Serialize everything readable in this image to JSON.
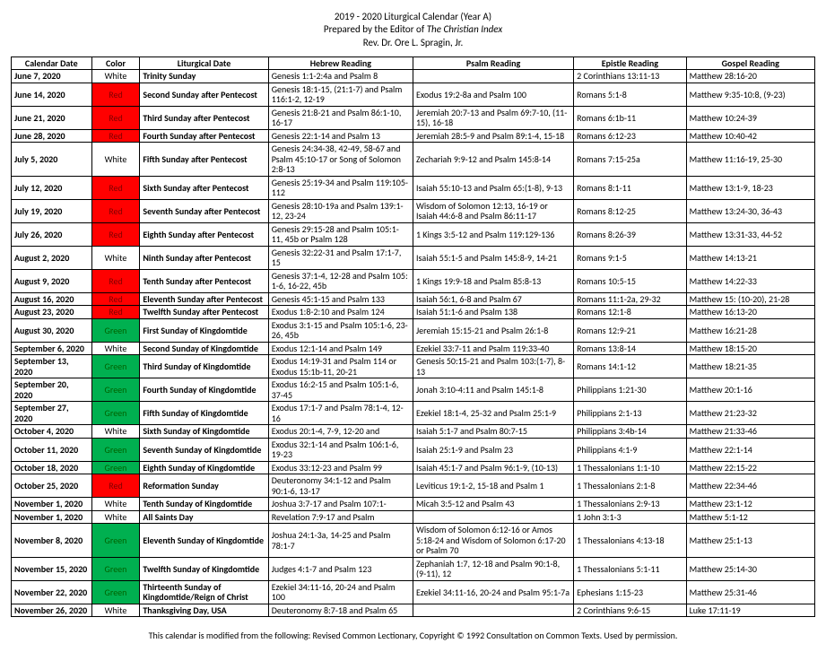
{
  "header": {
    "line1": "2019 - 2020 Liturgical Calendar (Year A)",
    "line2_pre": "Prepared by the Editor of ",
    "line2_em": "The Christian Index",
    "line3": "Rev. Dr. Ore L. Spragin, Jr."
  },
  "columns": [
    "Calendar Date",
    "Color",
    "Liturgical Date",
    "Hebrew Reading",
    "Psalm Reading",
    "Epistle Reading",
    "Gospel Reading"
  ],
  "color_map": {
    "White": {
      "bg": "#ffffff",
      "fg": "#000000"
    },
    "Red": {
      "bg": "#ff0000",
      "fg": "#800000"
    },
    "Green": {
      "bg": "#00b050",
      "fg": "#006400"
    }
  },
  "rows": [
    {
      "date": "June 7, 2020",
      "color": "White",
      "liturgical": "Trinity Sunday",
      "hebrew": "Genesis 1:1-2:4a and Psalm 8",
      "psalm": "",
      "epistle": "2 Corinthians 13:11-13",
      "gospel": "Matthew 28:16-20"
    },
    {
      "date": "June 14, 2020",
      "color": "Red",
      "liturgical": "Second Sunday after Pentecost",
      "hebrew": "Genesis 18:1-15, (21:1-7) and Psalm 116:1-2, 12-19",
      "psalm": "Exodus 19:2-8a and Psalm 100",
      "epistle": "Romans 5:1-8",
      "gospel": "Matthew 9:35-10:8, (9-23)"
    },
    {
      "date": "June 21, 2020",
      "color": "Red",
      "liturgical": "Third Sunday after Pentecost",
      "hebrew": "Genesis 21:8-21 and Psalm 86:1-10, 16-17",
      "psalm": "Jeremiah 20:7-13 and Psalm 69:7-10, (11-15), 16-18",
      "epistle": "Romans 6:1b-11",
      "gospel": "Matthew 10:24-39"
    },
    {
      "date": "June 28, 2020",
      "color": "Red",
      "liturgical": "Fourth Sunday after Pentecost",
      "hebrew": "Genesis 22:1-14 and Psalm 13",
      "psalm": "Jeremiah 28:5-9 and Psalm 89:1-4, 15-18",
      "epistle": "Romans 6:12-23",
      "gospel": "Matthew 10:40-42"
    },
    {
      "date": "July 5, 2020",
      "color": "White",
      "liturgical": "Fifth Sunday after Pentecost",
      "hebrew": "Genesis 24:34-38, 42-49, 58-67 and Psalm 45:10-17 or Song of Solomon 2:8-13",
      "psalm": "Zechariah 9:9-12 and Psalm 145:8-14",
      "epistle": "Romans 7:15-25a",
      "gospel": "Matthew 11:16-19, 25-30"
    },
    {
      "date": "July 12, 2020",
      "color": "Red",
      "liturgical": "Sixth Sunday after Pentecost",
      "hebrew": "Genesis 25:19-34 and Psalm 119:105-112",
      "psalm": "Isaiah 55:10-13 and Psalm 65:(1-8), 9-13",
      "epistle": "Romans 8:1-11",
      "gospel": "Matthew 13:1-9, 18-23"
    },
    {
      "date": "July 19, 2020",
      "color": "Red",
      "liturgical": "Seventh Sunday after Pentecost",
      "hebrew": "Genesis 28:10-19a and Psalm 139:1-12, 23-24",
      "psalm": "Wisdom of Solomon 12:13, 16-19 or Isaiah 44:6-8 and Psalm 86:11-17",
      "epistle": "Romans 8:12-25",
      "gospel": "Matthew 13:24-30, 36-43"
    },
    {
      "date": "July 26, 2020",
      "color": "Red",
      "liturgical": "Eighth Sunday after Pentecost",
      "hebrew": "Genesis 29:15-28 and Psalm 105:1-11, 45b or Psalm 128",
      "psalm": "1 Kings 3:5-12 and Psalm 119:129-136",
      "epistle": "Romans 8:26-39",
      "gospel": "Matthew 13:31-33, 44-52"
    },
    {
      "date": "August 2, 2020",
      "color": "White",
      "liturgical": "Ninth Sunday after Pentecost",
      "hebrew": "Genesis 32:22-31 and Psalm 17:1-7, 15",
      "psalm": "Isaiah 55:1-5 and Psalm 145:8-9, 14-21",
      "epistle": "Romans 9:1-5",
      "gospel": "Matthew 14:13-21"
    },
    {
      "date": "August 9, 2020",
      "color": "Red",
      "liturgical": "Tenth Sunday after Pentecost",
      "hebrew": "Genesis 37:1-4, 12-28 and Psalm 105: 1-6, 16-22, 45b",
      "psalm": "1 Kings 19:9-18 and Psalm 85:8-13",
      "epistle": "Romans 10:5-15",
      "gospel": "Matthew 14:22-33"
    },
    {
      "date": "August 16, 2020",
      "color": "Red",
      "liturgical": "Eleventh Sunday after Pentecost",
      "hebrew": "Genesis 45:1-15 and Psalm 133",
      "psalm": "Isaiah 56:1, 6-8 and Psalm 67",
      "epistle": "Romans 11:1-2a, 29-32",
      "gospel": "Matthew 15: (10-20), 21-28"
    },
    {
      "date": "August 23, 2020",
      "color": "Red",
      "liturgical": "Twelfth Sunday after Pentecost",
      "hebrew": "Exodus 1:8-2:10 and Psalm 124",
      "psalm": "Isaiah 51:1-6 and Psalm 138",
      "epistle": "Romans 12:1-8",
      "gospel": "Matthew 16:13-20"
    },
    {
      "date": "August 30, 2020",
      "color": "Green",
      "liturgical": "First Sunday of Kingdomtide",
      "hebrew": "Exodus 3:1-15 and Psalm 105:1-6, 23-26, 45b",
      "psalm": "Jeremiah 15:15-21 and Psalm 26:1-8",
      "epistle": "Romans 12:9-21",
      "gospel": "Matthew 16:21-28"
    },
    {
      "date": "September 6, 2020",
      "color": "White",
      "liturgical": "Second Sunday of Kingdomtide",
      "hebrew": "Exodus 12:1-14 and Psalm 149",
      "psalm": "Ezekiel 33:7-11 and Psalm 119:33-40",
      "epistle": "Romans 13:8-14",
      "gospel": "Matthew 18:15-20"
    },
    {
      "date": "September 13, 2020",
      "color": "Green",
      "liturgical": "Third Sunday of Kingdomtide",
      "hebrew": "Exodus 14:19-31 and Psalm 114 or Exodus 15:1b-11, 20-21",
      "psalm": "Genesis 50:15-21 and Psalm 103:(1-7), 8-13",
      "epistle": "Romans 14:1-12",
      "gospel": "Matthew 18:21-35"
    },
    {
      "date": "September 20, 2020",
      "color": "Green",
      "liturgical": "Fourth Sunday of Kingdomtide",
      "hebrew": "Exodus 16:2-15 and Psalm 105:1-6, 37-45",
      "psalm": "Jonah 3:10-4:11 and Psalm 145:1-8",
      "epistle": "Philippians 1:21-30",
      "gospel": "Matthew 20:1-16"
    },
    {
      "date": "September 27, 2020",
      "color": "Green",
      "liturgical": "Fifth Sunday of Kingdomtide",
      "hebrew": "Exodus 17:1-7 and Psalm 78:1-4, 12-16",
      "psalm": "Ezekiel 18:1-4, 25-32 and Psalm 25:1-9",
      "epistle": "Philippians 2:1-13",
      "gospel": "Matthew 21:23-32"
    },
    {
      "date": "October 4, 2020",
      "color": "White",
      "liturgical": "Sixth Sunday of Kingdomtide",
      "hebrew": "Exodus 20:1-4, 7-9, 12-20 and",
      "psalm": "Isaiah 5:1-7 and Psalm 80:7-15",
      "epistle": "Philippians 3:4b-14",
      "gospel": "Matthew 21:33-46"
    },
    {
      "date": "October 11, 2020",
      "color": "Green",
      "liturgical": "Seventh Sunday of Kingdomtide",
      "hebrew": "Exodus 32:1-14 and Psalm 106:1-6, 19-23",
      "psalm": "Isaiah 25:1-9 and Psalm 23",
      "epistle": "Philippians 4:1-9",
      "gospel": "Matthew 22:1-14"
    },
    {
      "date": "October 18, 2020",
      "color": "Green",
      "liturgical": "Eighth Sunday of Kingdomtide",
      "hebrew": "Exodus 33:12-23 and Psalm 99",
      "psalm": "Isaiah 45:1-7 and Psalm 96:1-9, (10-13)",
      "epistle": "1 Thessalonians 1:1-10",
      "gospel": "Matthew 22:15-22"
    },
    {
      "date": "October 25, 2020",
      "color": "Red",
      "liturgical": "Reformation Sunday",
      "hebrew": "Deuteronomy 34:1-12 and Psalm 90:1-6, 13-17",
      "psalm": "Leviticus 19:1-2, 15-18 and Psalm 1",
      "epistle": "1 Thessalonians 2:1-8",
      "gospel": "Matthew 22:34-46"
    },
    {
      "date": "November 1, 2020",
      "color": "White",
      "liturgical": "Tenth Sunday of Kingdomtide",
      "hebrew": "Joshua 3:7-17 and Psalm 107:1-",
      "psalm": "Micah 3:5-12 and Psalm 43",
      "epistle": "1 Thessalonians 2:9-13",
      "gospel": "Matthew 23:1-12"
    },
    {
      "date": "November 1, 2020",
      "color": "White",
      "liturgical": "All Saints Day",
      "hebrew": "Revelation 7:9-17 and Psalm",
      "psalm": "",
      "epistle": "1 John 3:1-3",
      "gospel": "Matthew 5:1-12"
    },
    {
      "date": "November 8, 2020",
      "color": "Green",
      "liturgical": "Eleventh Sunday of Kingdomtide",
      "hebrew": "Joshua 24:1-3a, 14-25 and Psalm 78:1-7",
      "psalm": "Wisdom of Solomon 6:12-16 or Amos 5:18-24 and Wisdom of Solomon 6:17-20 or Psalm 70",
      "epistle": "1 Thessalonians 4:13-18",
      "gospel": "Matthew 25:1-13"
    },
    {
      "date": "November 15, 2020",
      "color": "Green",
      "liturgical": "Twelfth Sunday of Kingdomtide",
      "hebrew": "Judges 4:1-7 and Psalm 123",
      "psalm": "Zephaniah 1:7, 12-18 and Psalm 90:1-8, (9-11), 12",
      "epistle": "1 Thessalonians 5:1-11",
      "gospel": "Matthew 25:14-30"
    },
    {
      "date": "November 22, 2020",
      "color": "Green",
      "liturgical": "Thirteenth Sunday of Kingdomtide/Reign of Christ",
      "hebrew": "Ezekiel 34:11-16, 20-24 and Psalm 100",
      "psalm": "Ezekiel 34:11-16, 20-24 and Psalm 95:1-7a",
      "epistle": "Ephesians 1:15-23",
      "gospel": "Matthew 25:31-46"
    },
    {
      "date": "November 26, 2020",
      "color": "White",
      "liturgical": "Thanksgiving Day, USA",
      "hebrew": "Deuteronomy 8:7-18 and Psalm 65",
      "psalm": "",
      "epistle": "2 Corinthians 9:6-15",
      "gospel": "Luke 17:11-19"
    }
  ],
  "footer": "This calendar is modified from the following: Revised Common Lectionary, Copyright © 1992 Consultation on Common Texts. Used by permission."
}
